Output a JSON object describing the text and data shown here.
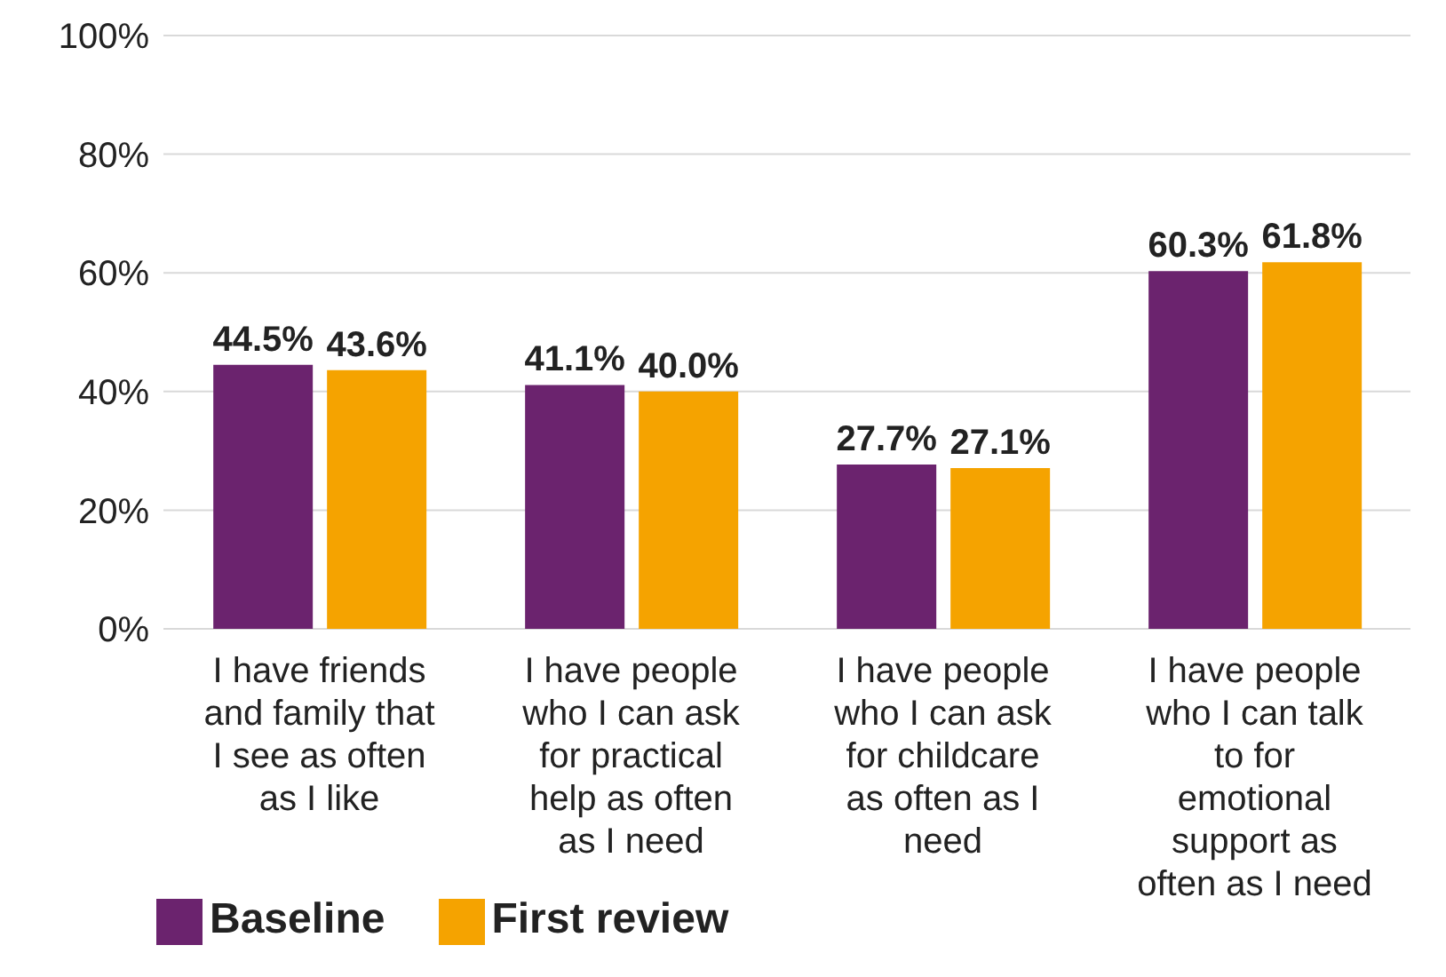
{
  "chart_data": {
    "type": "bar",
    "categories": [
      "I have friends and family that I see as often as I like",
      "I have people who I can ask for practical help as often as I need",
      "I have people who I can ask for childcare as often as I need",
      "I have people who I can talk to for emotional support as often as I need"
    ],
    "series": [
      {
        "name": "Baseline",
        "color": "#6b236e",
        "values": [
          44.5,
          41.1,
          27.7,
          60.3
        ]
      },
      {
        "name": "First review",
        "color": "#f5a300",
        "values": [
          43.6,
          40.0,
          27.1,
          61.8
        ]
      }
    ],
    "value_labels": [
      [
        "44.5%",
        "41.1%",
        "27.7%",
        "60.3%"
      ],
      [
        "43.6%",
        "40.0%",
        "27.1%",
        "61.8%"
      ]
    ],
    "ylim": [
      0,
      100
    ],
    "yticks": [
      {
        "value": 0,
        "label": "0%"
      },
      {
        "value": 20,
        "label": "20%"
      },
      {
        "value": 40,
        "label": "40%"
      },
      {
        "value": 60,
        "label": "60%"
      },
      {
        "value": 80,
        "label": "80%"
      },
      {
        "value": 100,
        "label": "100%"
      }
    ],
    "grid": "y",
    "legend": "bottom left"
  }
}
